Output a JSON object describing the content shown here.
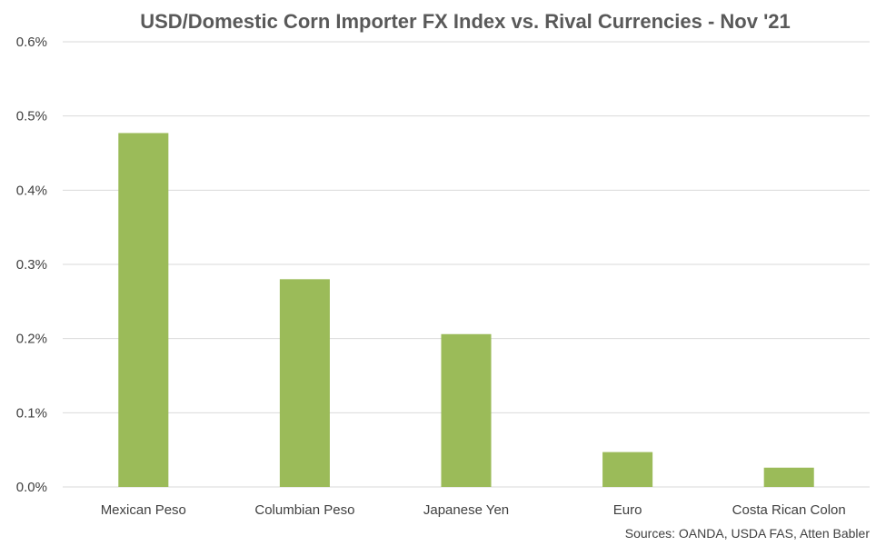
{
  "chart_data": {
    "type": "bar",
    "title": "USD/Domestic Corn Importer FX Index vs. Rival Currencies - Nov '21",
    "xlabel": "",
    "ylabel": "",
    "categories": [
      "Mexican Peso",
      "Columbian Peso",
      "Japanese Yen",
      "Euro",
      "Costa Rican Colon"
    ],
    "values": [
      0.00477,
      0.0028,
      0.00206,
      0.00047,
      0.00026
    ],
    "ylim": [
      0,
      0.006
    ],
    "yticks": [
      0,
      0.001,
      0.002,
      0.003,
      0.004,
      0.005,
      0.006
    ],
    "ytick_labels": [
      "0.0%",
      "0.1%",
      "0.2%",
      "0.3%",
      "0.4%",
      "0.5%",
      "0.6%"
    ],
    "grid": true,
    "legend": "none",
    "bar_color": "#9BBB59",
    "grid_color": "#D9D9D9",
    "text_color": "#404040",
    "source_note": "Sources: OANDA, USDA FAS, Atten Babler"
  }
}
